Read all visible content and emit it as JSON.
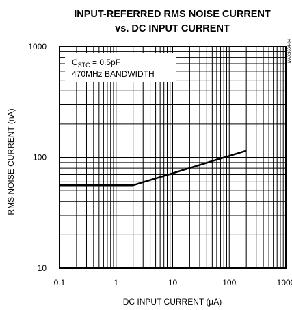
{
  "chart_data": {
    "type": "line",
    "title_lines": [
      "INPUT-REFERRED RMS NOISE CURRENT",
      "vs. DC INPUT CURRENT"
    ],
    "xlabel": "DC INPUT CURRENT (µA)",
    "ylabel": "RMS NOISE CURRENT (nA)",
    "x_scale": "log",
    "y_scale": "log",
    "xlim": [
      0.1,
      1000
    ],
    "ylim": [
      10,
      1000
    ],
    "x_ticks": [
      0.1,
      1,
      10,
      100,
      1000
    ],
    "x_tick_labels": [
      "0.1",
      "1",
      "10",
      "100",
      "1000"
    ],
    "y_ticks": [
      10,
      100,
      1000
    ],
    "y_tick_labels": [
      "10",
      "100",
      "1000"
    ],
    "grid": true,
    "series": [
      {
        "color": "#000000",
        "x": [
          0.1,
          2,
          200
        ],
        "y": [
          56,
          56,
          115
        ]
      }
    ],
    "annotations": {
      "line1_main": "C",
      "line1_sub": "STC",
      "line1_rest": " = 0.5pF",
      "line2": "470MHz BANDWIDTH"
    },
    "watermark": "MAX3664-04"
  }
}
